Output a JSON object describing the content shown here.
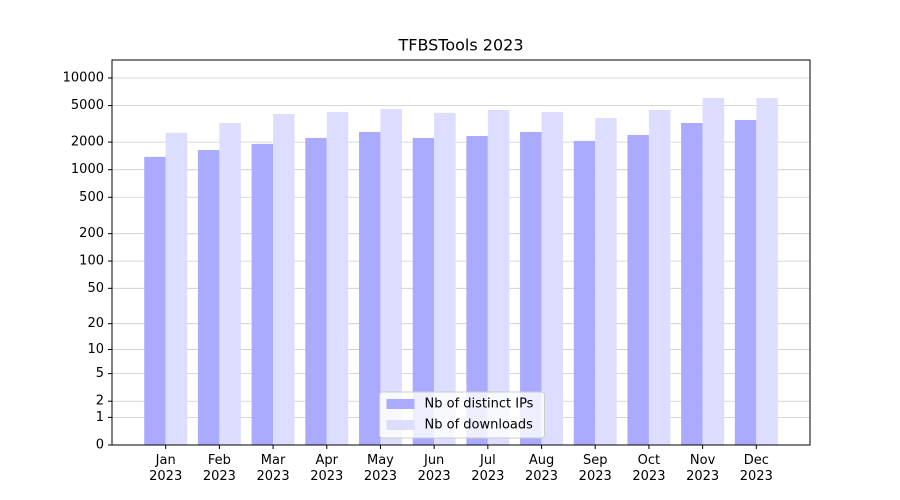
{
  "chart_data": {
    "type": "bar",
    "title": "TFBSTools 2023",
    "categories": [
      "Jan\n2023",
      "Feb\n2023",
      "Mar\n2023",
      "Apr\n2023",
      "May\n2023",
      "Jun\n2023",
      "Jul\n2023",
      "Aug\n2023",
      "Sep\n2023",
      "Oct\n2023",
      "Nov\n2023",
      "Dec\n2023"
    ],
    "series": [
      {
        "name": "Nb of distinct IPs",
        "color": "#aaaaff",
        "values": [
          1380,
          1640,
          1910,
          2220,
          2580,
          2220,
          2330,
          2580,
          2060,
          2390,
          3230,
          3480
        ]
      },
      {
        "name": "Nb of downloads",
        "color": "#ddddff",
        "values": [
          2520,
          3230,
          4050,
          4260,
          4590,
          4160,
          4480,
          4260,
          3660,
          4480,
          6050,
          6050
        ]
      }
    ],
    "yscale": "log1p",
    "ylim": [
      0,
      15700
    ],
    "yticks": [
      0,
      1,
      2,
      5,
      10,
      20,
      50,
      100,
      200,
      500,
      1000,
      2000,
      5000,
      10000
    ],
    "grid": true,
    "legend": "lower center"
  }
}
